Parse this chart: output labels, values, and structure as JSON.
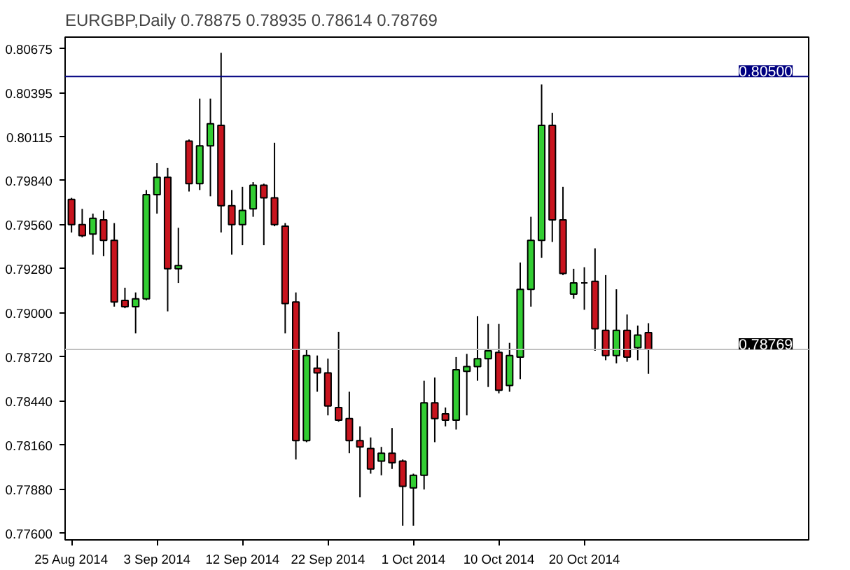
{
  "chart_data": {
    "type": "candlestick",
    "title": "EURGBP,Daily 0.78875 0.78935 0.78614 0.78769",
    "categories": [
      "25 Aug 2014",
      null,
      null,
      null,
      null,
      null,
      null,
      null,
      "3 Sep 2014",
      null,
      null,
      null,
      null,
      null,
      null,
      null,
      "12 Sep 2014",
      null,
      null,
      null,
      null,
      null,
      null,
      null,
      "22 Sep 2014",
      null,
      null,
      null,
      null,
      null,
      null,
      null,
      "1 Oct 2014",
      null,
      null,
      null,
      null,
      null,
      null,
      null,
      "10 Oct 2014",
      null,
      null,
      null,
      null,
      null,
      null,
      null,
      "20 Oct 2014",
      null,
      null,
      null,
      null,
      null,
      null
    ],
    "ohlc": [
      [
        0.7972,
        0.7973,
        0.7951,
        0.7956
      ],
      [
        0.7956,
        0.7966,
        0.7948,
        0.7949
      ],
      [
        0.795,
        0.7963,
        0.7937,
        0.796
      ],
      [
        0.7959,
        0.7965,
        0.7936,
        0.7946
      ],
      [
        0.7946,
        0.7957,
        0.7904,
        0.7907
      ],
      [
        0.7908,
        0.7916,
        0.7903,
        0.7904
      ],
      [
        0.7904,
        0.7913,
        0.7887,
        0.7909
      ],
      [
        0.7909,
        0.7978,
        0.7908,
        0.7975
      ],
      [
        0.7975,
        0.7995,
        0.7963,
        0.7986
      ],
      [
        0.7986,
        0.7992,
        0.7901,
        0.7928
      ],
      [
        0.7928,
        0.7954,
        0.7919,
        0.793
      ],
      [
        0.8009,
        0.801,
        0.7977,
        0.7982
      ],
      [
        0.7982,
        0.8036,
        0.7978,
        0.8006
      ],
      [
        0.8006,
        0.8036,
        0.7974,
        0.802
      ],
      [
        0.8019,
        0.8065,
        0.7951,
        0.7968
      ],
      [
        0.7968,
        0.7978,
        0.7937,
        0.7956
      ],
      [
        0.7956,
        0.798,
        0.7943,
        0.7965
      ],
      [
        0.7966,
        0.7983,
        0.7961,
        0.7981
      ],
      [
        0.7981,
        0.7982,
        0.7943,
        0.7973
      ],
      [
        0.7973,
        0.8008,
        0.7955,
        0.7956
      ],
      [
        0.7955,
        0.7957,
        0.7887,
        0.7906
      ],
      [
        0.7907,
        0.7913,
        0.7807,
        0.7819
      ],
      [
        0.7819,
        0.7877,
        0.7818,
        0.7873
      ],
      [
        0.7865,
        0.7873,
        0.785,
        0.7862
      ],
      [
        0.7862,
        0.7871,
        0.7835,
        0.7841
      ],
      [
        0.784,
        0.7888,
        0.7831,
        0.7832
      ],
      [
        0.7833,
        0.785,
        0.7811,
        0.7819
      ],
      [
        0.7819,
        0.7828,
        0.7783,
        0.7815
      ],
      [
        0.7814,
        0.7821,
        0.7798,
        0.7801
      ],
      [
        0.7806,
        0.7815,
        0.7797,
        0.7811
      ],
      [
        0.7811,
        0.7827,
        0.7801,
        0.7805
      ],
      [
        0.7806,
        0.7807,
        0.7765,
        0.779
      ],
      [
        0.7789,
        0.7798,
        0.7765,
        0.7797
      ],
      [
        0.7797,
        0.7857,
        0.7788,
        0.7843
      ],
      [
        0.7843,
        0.7859,
        0.7818,
        0.7833
      ],
      [
        0.7836,
        0.784,
        0.7828,
        0.7832
      ],
      [
        0.7832,
        0.7872,
        0.7826,
        0.7864
      ],
      [
        0.7863,
        0.7874,
        0.7835,
        0.7866
      ],
      [
        0.7866,
        0.7898,
        0.7857,
        0.7871
      ],
      [
        0.7871,
        0.7893,
        0.7853,
        0.7876
      ],
      [
        0.7875,
        0.7893,
        0.7849,
        0.7851
      ],
      [
        0.7854,
        0.7881,
        0.785,
        0.7873
      ],
      [
        0.7872,
        0.7932,
        0.7858,
        0.7915
      ],
      [
        0.7915,
        0.7961,
        0.7904,
        0.7946
      ],
      [
        0.7946,
        0.8045,
        0.7935,
        0.8019
      ],
      [
        0.8019,
        0.8027,
        0.7945,
        0.7959
      ],
      [
        0.7959,
        0.798,
        0.7924,
        0.7925
      ],
      [
        0.7912,
        0.7928,
        0.7909,
        0.7919
      ],
      [
        0.7919,
        0.7929,
        0.7902,
        0.7919
      ],
      [
        0.792,
        0.7941,
        0.7876,
        0.789
      ],
      [
        0.7889,
        0.7924,
        0.787,
        0.7873
      ],
      [
        0.7873,
        0.7915,
        0.7868,
        0.7889
      ],
      [
        0.7889,
        0.7899,
        0.7869,
        0.7872
      ],
      [
        0.7878,
        0.7892,
        0.787,
        0.7886
      ],
      [
        0.78875,
        0.78935,
        0.78614,
        0.78769
      ]
    ],
    "colors": [
      "#c8141e",
      "#c8141e",
      "#32cd32",
      "#c8141e",
      "#c8141e",
      "#c8141e",
      "#32cd32",
      "#32cd32",
      "#32cd32",
      "#c8141e",
      "#32cd32",
      "#c8141e",
      "#32cd32",
      "#32cd32",
      "#c8141e",
      "#c8141e",
      "#32cd32",
      "#32cd32",
      "#c8141e",
      "#c8141e",
      "#c8141e",
      "#c8141e",
      "#32cd32",
      "#c8141e",
      "#c8141e",
      "#c8141e",
      "#c8141e",
      "#c8141e",
      "#c8141e",
      "#32cd32",
      "#c8141e",
      "#c8141e",
      "#32cd32",
      "#32cd32",
      "#c8141e",
      "#c8141e",
      "#32cd32",
      "#32cd32",
      "#32cd32",
      "#32cd32",
      "#c8141e",
      "#32cd32",
      "#32cd32",
      "#32cd32",
      "#32cd32",
      "#c8141e",
      "#c8141e",
      "#32cd32",
      "#000000",
      "#c8141e",
      "#c8141e",
      "#32cd32",
      "#c8141e",
      "#32cd32",
      "#c8141e"
    ],
    "ylim": [
      0.7756,
      0.8075
    ],
    "yticks": [
      {
        "value": 0.776,
        "label": "0.77600"
      },
      {
        "value": 0.7788,
        "label": "0.77880"
      },
      {
        "value": 0.7816,
        "label": "0.78160"
      },
      {
        "value": 0.7844,
        "label": "0.78440"
      },
      {
        "value": 0.7872,
        "label": "0.78720"
      },
      {
        "value": 0.79,
        "label": "0.79000"
      },
      {
        "value": 0.7928,
        "label": "0.79280"
      },
      {
        "value": 0.7956,
        "label": "0.79560"
      },
      {
        "value": 0.7984,
        "label": "0.79840"
      },
      {
        "value": 0.80115,
        "label": "0.80115"
      },
      {
        "value": 0.80395,
        "label": "0.80395"
      },
      {
        "value": 0.80675,
        "label": "0.80675"
      }
    ],
    "ref_lines": [
      {
        "axis": "y",
        "value": 0.805,
        "label": "0.80500",
        "color": "#000080"
      },
      {
        "axis": "y",
        "value": 0.78769,
        "label": "0.78769",
        "color": "#c0c0c0"
      }
    ]
  }
}
